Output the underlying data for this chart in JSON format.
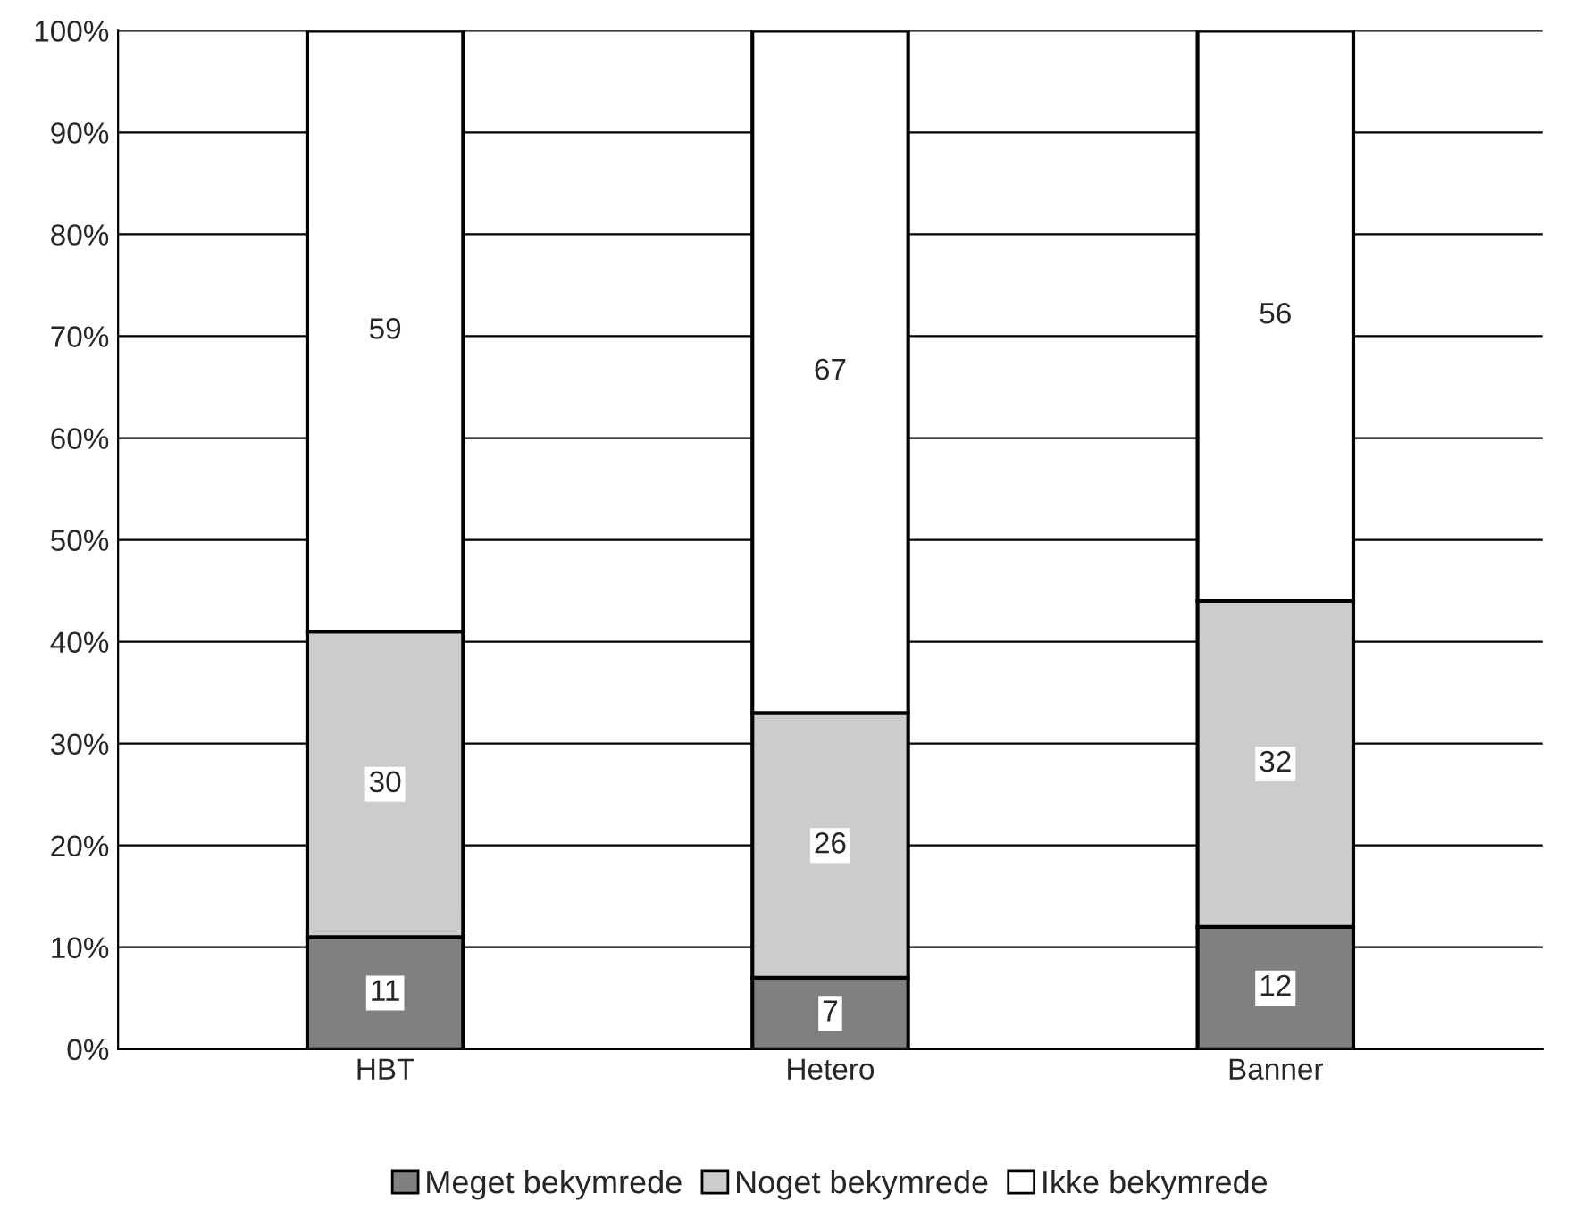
{
  "chart_data": {
    "type": "bar",
    "stacked": true,
    "categories": [
      "HBT",
      "Hetero",
      "Banner"
    ],
    "series": [
      {
        "name": "Meget bekymrede",
        "color": "#808080",
        "values": [
          11,
          7,
          12
        ]
      },
      {
        "name": "Noget bekymrede",
        "color": "#cccccc",
        "values": [
          30,
          26,
          32
        ]
      },
      {
        "name": "Ikke bekymrede",
        "color": "#ffffff",
        "values": [
          59,
          67,
          56
        ]
      }
    ],
    "ylim": [
      0,
      100
    ],
    "yticks": [
      {
        "value": 0,
        "label": "0%"
      },
      {
        "value": 10,
        "label": "10%"
      },
      {
        "value": 20,
        "label": "20%"
      },
      {
        "value": 30,
        "label": "30%"
      },
      {
        "value": 40,
        "label": "40%"
      },
      {
        "value": 50,
        "label": "50%"
      },
      {
        "value": 60,
        "label": "60%"
      },
      {
        "value": 70,
        "label": "70%"
      },
      {
        "value": 80,
        "label": "80%"
      },
      {
        "value": 90,
        "label": "90%"
      },
      {
        "value": 100,
        "label": "100%"
      }
    ],
    "grid": "y",
    "legend": "bottom",
    "data_labels": true
  }
}
